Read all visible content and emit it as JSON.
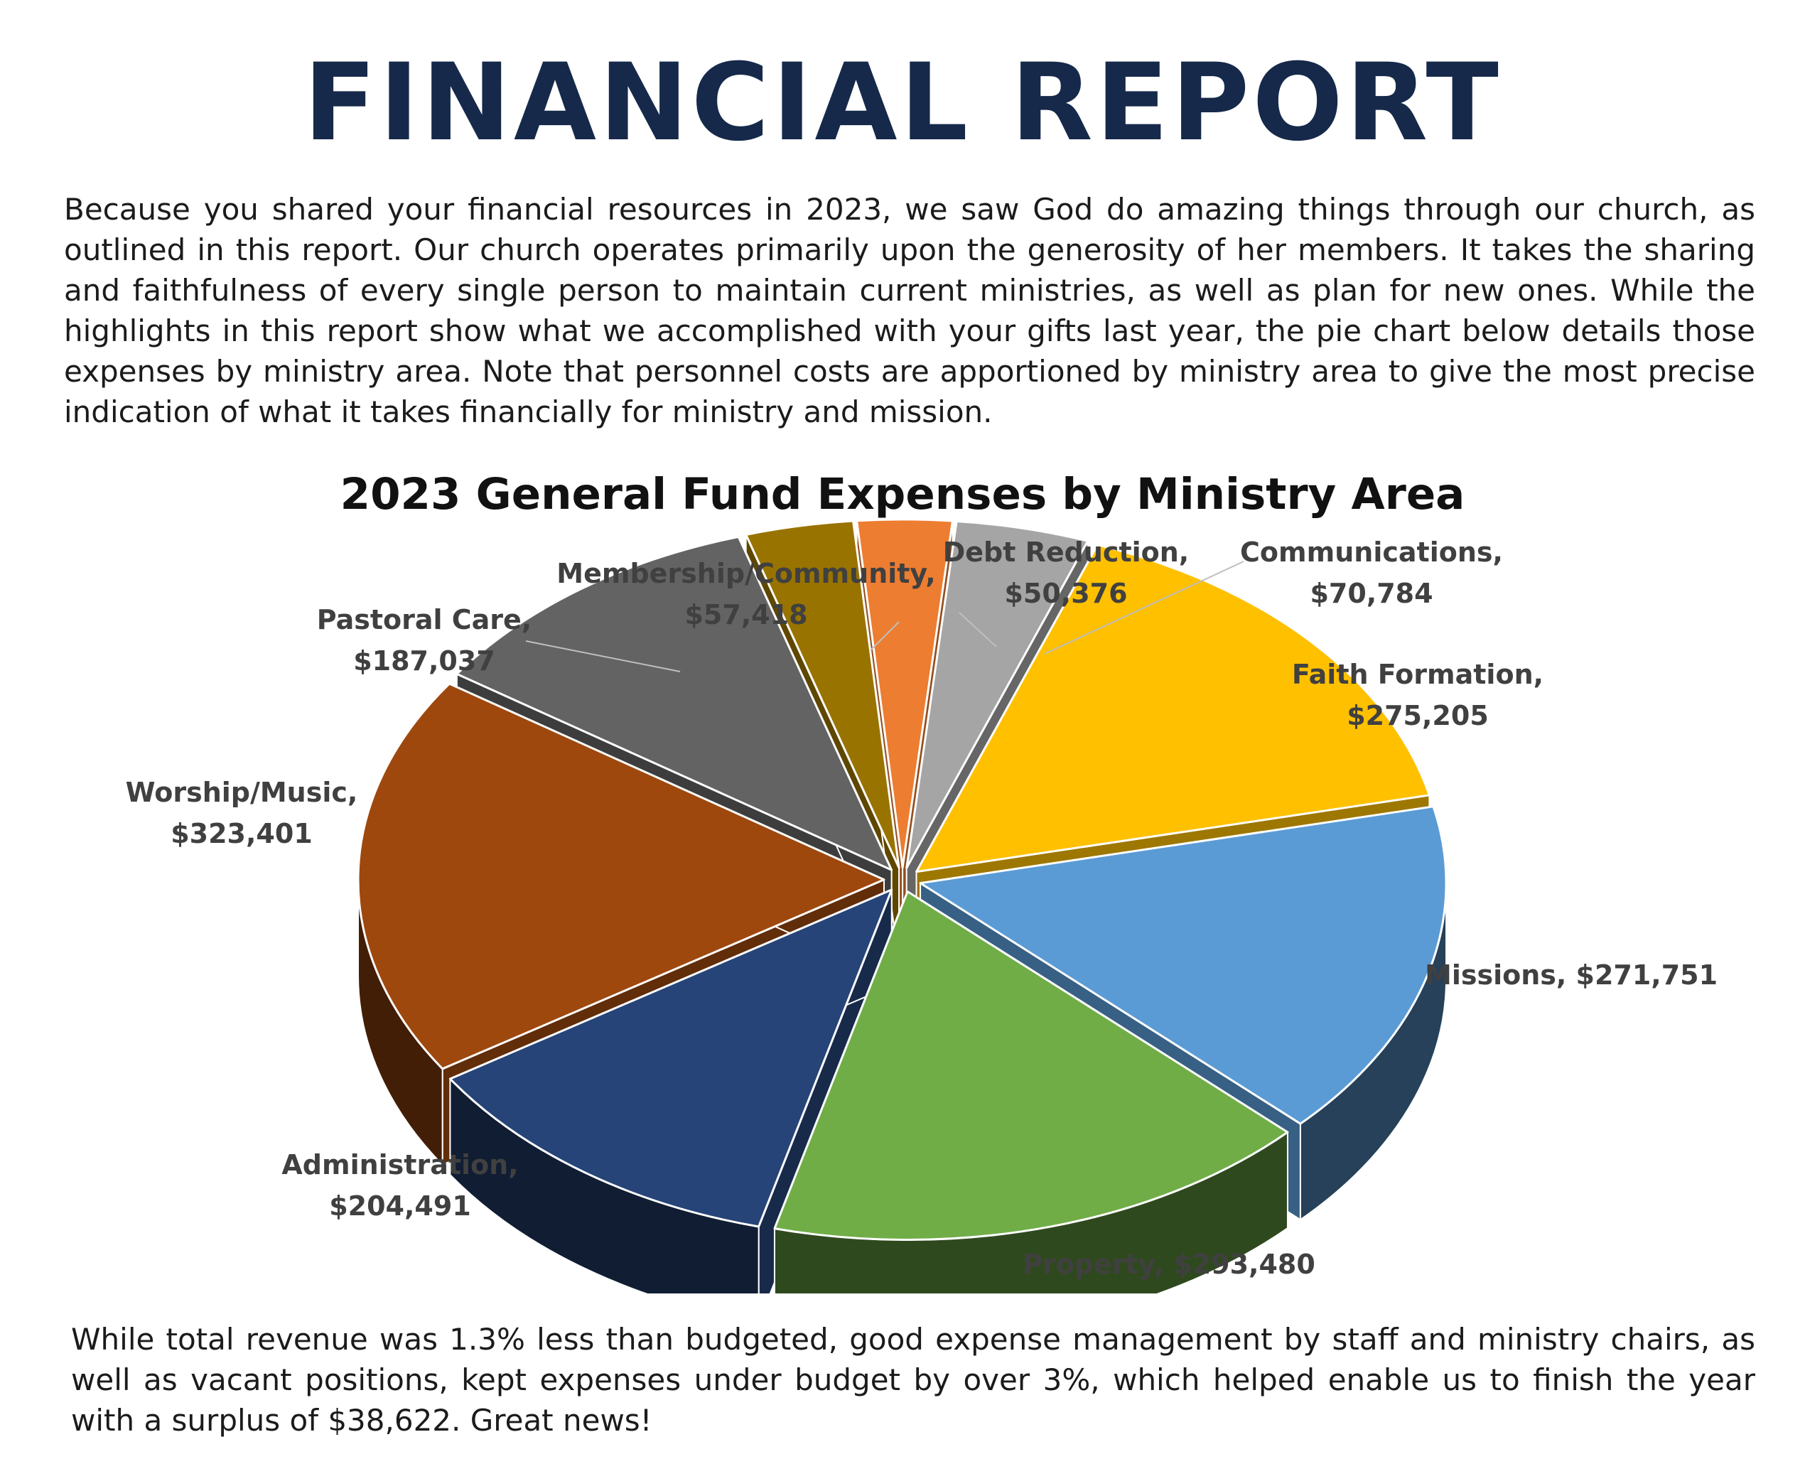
{
  "document": {
    "title": "FINANCIAL REPORT",
    "intro": "Because you shared your financial resources in 2023, we saw God do amazing things through our church, as outlined in this report. Our church operates primarily upon the generosity of her members. It takes the sharing and faithfulness of every single person to maintain current ministries, as well as plan for new ones. While the highlights in this report show what we accomplished with your gifts last year, the pie chart below details those expenses by ministry area. Note that personnel costs are apportioned by ministry area to give the most precise indication of what it takes financially for ministry and mission.",
    "outro": "While total revenue was 1.3% less than budgeted, good expense management by staff and ministry chairs, as well as vacant positions, kept expenses under budget by over 3%, which helped enable us to finish the year with a surplus of $38,622. Great news!"
  },
  "chart_data": {
    "type": "pie",
    "style": "3d-exploded",
    "title": "2023 General Fund Expenses by Ministry Area",
    "slices": [
      {
        "name": "Debt Reduction",
        "value": 50376,
        "label": "$50,376",
        "color": "#ED7D31"
      },
      {
        "name": "Communications",
        "value": 70784,
        "label": "$70,784",
        "color": "#A5A5A5"
      },
      {
        "name": "Faith Formation",
        "value": 275205,
        "label": "$275,205",
        "color": "#FFC000"
      },
      {
        "name": "Missions",
        "value": 271751,
        "label": "$271,751",
        "color": "#5B9BD5"
      },
      {
        "name": "Property",
        "value": 293480,
        "label": "$293,480",
        "color": "#70AD47"
      },
      {
        "name": "Administration",
        "value": 204491,
        "label": "$204,491",
        "color": "#264478"
      },
      {
        "name": "Worship/Music",
        "value": 323401,
        "label": "$323,401",
        "color": "#9E480E"
      },
      {
        "name": "Pastoral Care",
        "value": 187037,
        "label": "$187,037",
        "color": "#636363"
      },
      {
        "name": "Membership/Community",
        "value": 57418,
        "label": "$57,418",
        "color": "#997300"
      }
    ]
  }
}
